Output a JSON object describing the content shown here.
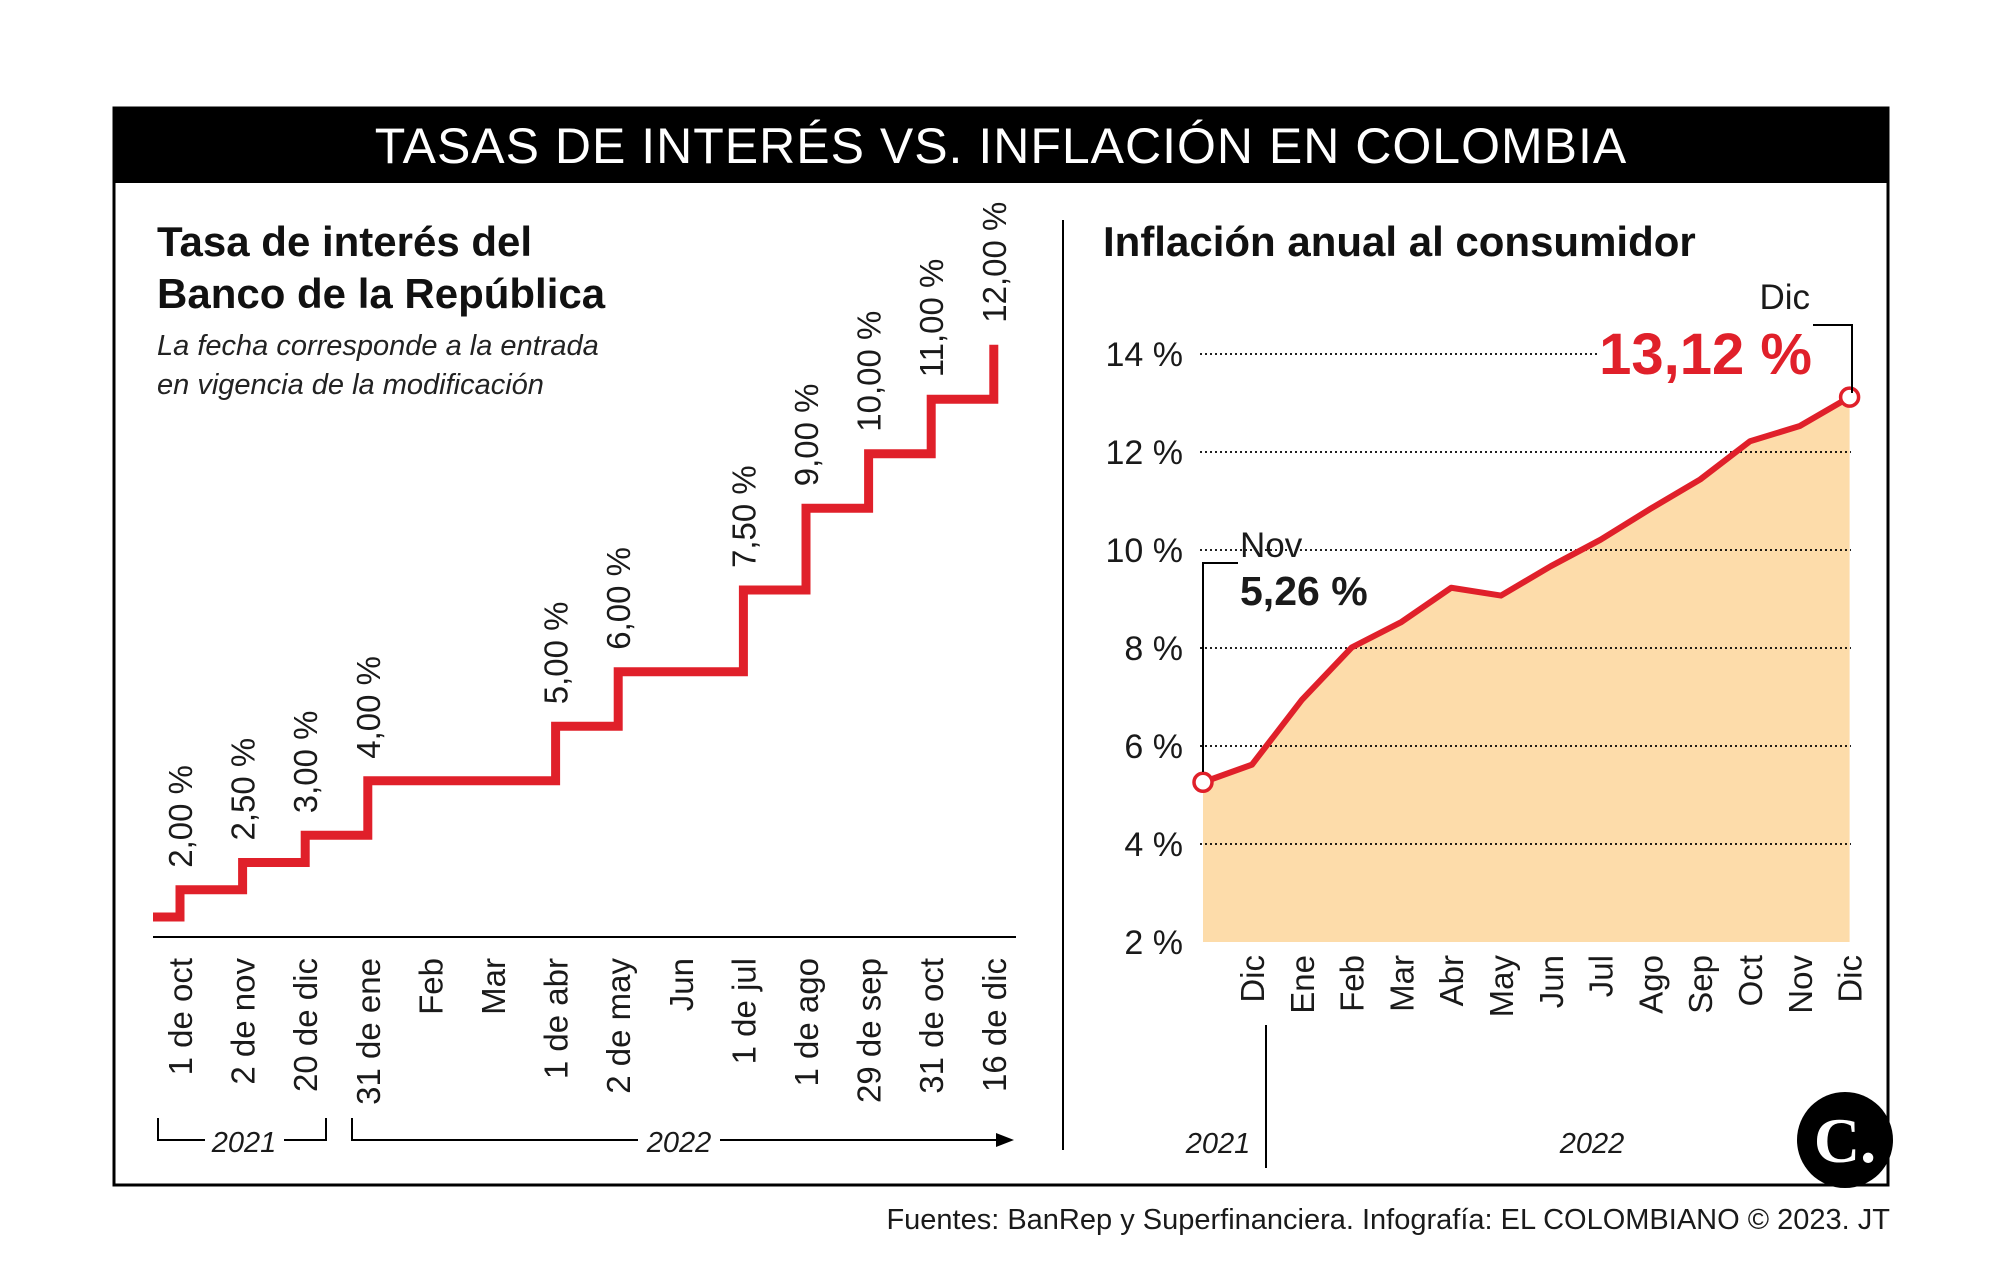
{
  "header": {
    "title": "TASAS DE INTERÉS VS. INFLACIÓN EN COLOMBIA"
  },
  "left_panel": {
    "title_line1": "Tasa de interés del",
    "title_line2": "Banco de la República",
    "note_line1": "La fecha corresponde a la entrada",
    "note_line2": "en vigencia de la modificación",
    "year_2021": "2021",
    "year_2022": "2022"
  },
  "right_panel": {
    "title": "Inflación anual al consumidor",
    "year_2021": "2021",
    "year_2022": "2022",
    "ann_start_month": "Nov",
    "ann_start_value": "5,26 %",
    "ann_end_month": "Dic",
    "ann_end_value": "13,12 %"
  },
  "footer": {
    "source": "Fuentes: BanRep y Superfinanciera. Infografía: EL COLOMBIANO © 2023. JT"
  },
  "logo": {
    "letter": "C."
  },
  "colors": {
    "red": "#e0202a",
    "area": "#fddcaa",
    "black": "#000000"
  },
  "chart_data": [
    {
      "type": "line",
      "title": "Tasa de interés del Banco de la República",
      "subtitle": "La fecha corresponde a la entrada en vigencia de la modificación",
      "categories": [
        "1 de oct",
        "2 de nov",
        "20 de dic",
        "31 de ene",
        "Feb",
        "Mar",
        "1 de abr",
        "2 de may",
        "Jun",
        "1 de jul",
        "1 de ago",
        "29 de sep",
        "31 de oct",
        "16 de dic"
      ],
      "series": [
        {
          "name": "Tasa de interés",
          "values": [
            2.0,
            2.5,
            3.0,
            4.0,
            4.0,
            4.0,
            5.0,
            6.0,
            6.0,
            7.5,
            9.0,
            10.0,
            11.0,
            12.0
          ]
        }
      ],
      "rate_labels": [
        "2,00 %",
        "2,50 %",
        "3,00 %",
        "4,00 %",
        "5,00 %",
        "6,00 %",
        "7,50 %",
        "9,00 %",
        "10,00 %",
        "11,00 %",
        "12,00 %"
      ],
      "rate_label_index": [
        0,
        1,
        2,
        3,
        6,
        7,
        9,
        10,
        11,
        12,
        13
      ],
      "years": [
        "2021",
        "2022"
      ],
      "ylim": [
        1.5,
        12.0
      ],
      "xlabel": "",
      "ylabel": ""
    },
    {
      "type": "area",
      "title": "Inflación anual al consumidor",
      "categories": [
        "Dic",
        "Ene",
        "Feb",
        "Mar",
        "Abr",
        "May",
        "Jun",
        "Jul",
        "Ago",
        "Sep",
        "Oct",
        "Nov",
        "Dic"
      ],
      "start_point": {
        "label": "Nov",
        "value": 5.26
      },
      "series": [
        {
          "name": "Inflación anual",
          "values": [
            5.62,
            6.94,
            8.01,
            8.53,
            9.23,
            9.07,
            9.67,
            10.21,
            10.84,
            11.44,
            12.22,
            12.53,
            13.12
          ]
        }
      ],
      "yticks": [
        "2 %",
        "4 %",
        "6 %",
        "8 %",
        "10 %",
        "12 %",
        "14 %"
      ],
      "ylim": [
        2,
        14
      ],
      "years": [
        "2021",
        "2022"
      ],
      "xlabel": "",
      "ylabel": "",
      "grid": true
    }
  ]
}
